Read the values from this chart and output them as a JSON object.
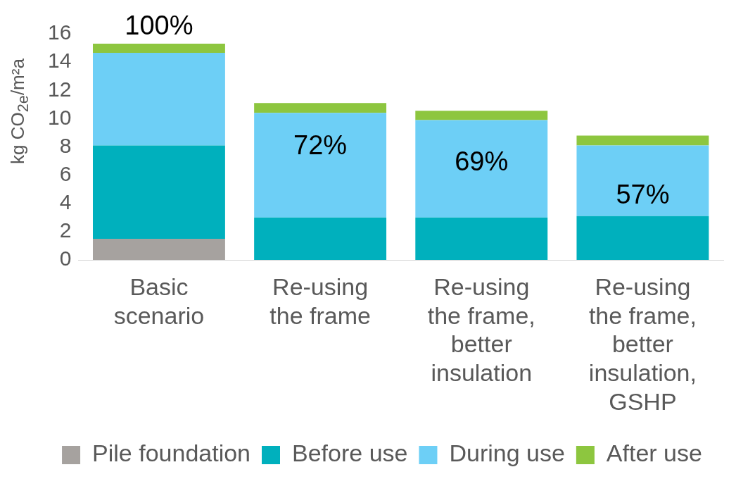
{
  "chart_data": {
    "type": "bar",
    "ylabel": "kg CO$_{2e}$/m²a",
    "stacked": true,
    "legend": "bottom",
    "grid": false,
    "categories": [
      "Basic scenario",
      "Re-using the frame",
      "Re-using the frame, better insulation",
      "Re-using the frame, better insulation, GSHP"
    ],
    "ylim": [
      0,
      16
    ],
    "yticks": [
      0,
      2,
      4,
      6,
      8,
      10,
      12,
      14,
      16
    ],
    "series": [
      {
        "name": "Pile foundation",
        "color": "#a6a29f",
        "values": [
          1.5,
          null,
          null,
          null
        ]
      },
      {
        "name": "Before use",
        "color": "#00b0bd",
        "values": [
          6.6,
          3.0,
          3.0,
          3.1
        ]
      },
      {
        "name": "During use",
        "color": "#6dcff6",
        "values": [
          6.55,
          7.4,
          6.9,
          5.0
        ]
      },
      {
        "name": "After use",
        "color": "#8dc63f",
        "values": [
          0.65,
          0.7,
          0.65,
          0.7
        ]
      }
    ],
    "annotations": [
      "100%",
      "72%",
      "69%",
      "57%"
    ]
  }
}
